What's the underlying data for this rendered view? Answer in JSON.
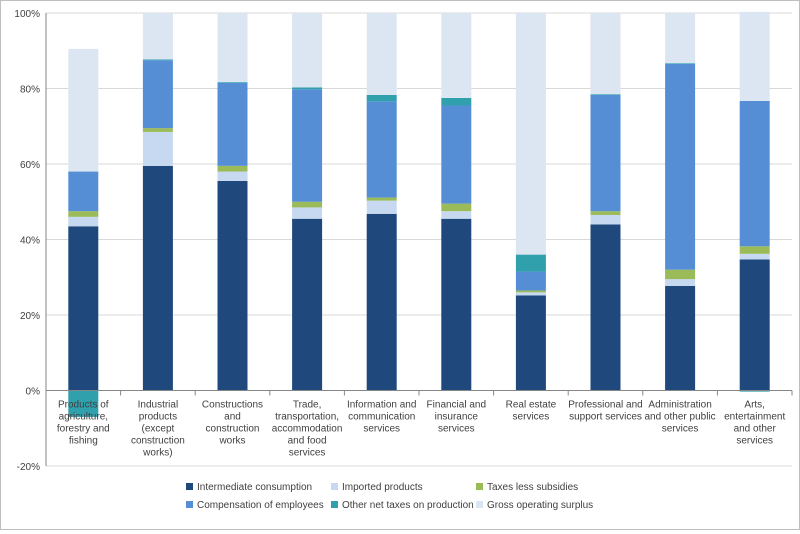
{
  "chart_data": {
    "type": "bar",
    "stacked": true,
    "title": "",
    "xlabel": "",
    "ylabel": "",
    "ylim": [
      -20,
      100
    ],
    "yticks": [
      -20,
      0,
      20,
      40,
      60,
      80,
      100
    ],
    "ytick_suffix": "%",
    "grid": "horizontal",
    "legend_position": "bottom",
    "categories": [
      "Products of agriculture, forestry and fishing",
      "Industrial products (except construction works)",
      "Constructions and construction works",
      "Trade, transportation, accommodation and food services",
      "Information and communication services",
      "Financial and insurance services",
      "Real estate services",
      "Professional and support services",
      "Administration and other public services",
      "Arts, entertainment and other services"
    ],
    "category_label_lines": [
      [
        "Products of",
        "agriculture,",
        "forestry and",
        "fishing"
      ],
      [
        "Industrial",
        "products",
        "(except",
        "construction",
        "works)"
      ],
      [
        "Constructions",
        "and",
        "construction",
        "works"
      ],
      [
        "Trade,",
        "transportation,",
        "accommodation",
        "and food",
        "services"
      ],
      [
        "Information and",
        "communication",
        "services"
      ],
      [
        "Financial and",
        "insurance",
        "services"
      ],
      [
        "Real estate",
        "services"
      ],
      [
        "Professional and",
        "support services"
      ],
      [
        "Administration",
        "and other public",
        "services"
      ],
      [
        "Arts,",
        "entertainment",
        "and other",
        "services"
      ]
    ],
    "series": [
      {
        "name": "Intermediate consumption",
        "color": "#1f497d",
        "values": [
          43.5,
          59.5,
          55.5,
          45.5,
          46.8,
          45.5,
          25.2,
          44.0,
          27.7,
          34.7
        ]
      },
      {
        "name": "Imported products",
        "color": "#c6d9f1",
        "values": [
          2.5,
          9.0,
          2.5,
          3.0,
          3.5,
          2.0,
          0.8,
          2.5,
          1.8,
          1.5
        ]
      },
      {
        "name": "Taxes less subsidies",
        "color": "#9bbb59",
        "values": [
          1.5,
          1.0,
          1.5,
          1.5,
          0.8,
          2.0,
          0.5,
          1.0,
          2.5,
          2.0
        ]
      },
      {
        "name": "Compensation of employees",
        "color": "#558ed5",
        "values": [
          10.5,
          18.0,
          22.0,
          29.8,
          25.5,
          26.0,
          5.0,
          30.8,
          54.5,
          38.5
        ]
      },
      {
        "name": "Other net taxes on production",
        "color": "#31a0ad",
        "values": [
          -7.0,
          0.2,
          0.2,
          0.5,
          1.7,
          2.0,
          4.5,
          0.2,
          0.2,
          -0.3
        ]
      },
      {
        "name": "Gross operating surplus",
        "color": "#dce6f2",
        "values": [
          32.5,
          12.3,
          18.3,
          19.7,
          21.7,
          22.5,
          64.0,
          21.5,
          13.3,
          23.6
        ]
      }
    ]
  }
}
